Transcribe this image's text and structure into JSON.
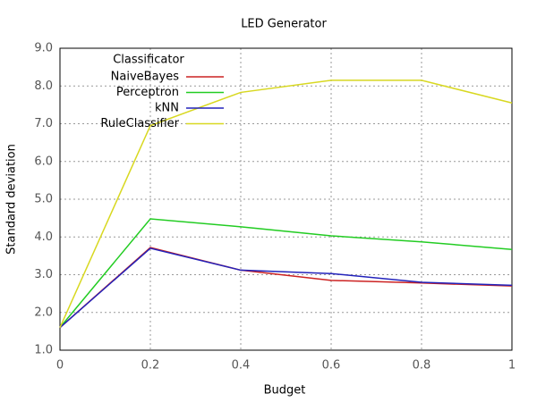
{
  "chart_data": {
    "type": "line",
    "title": "LED Generator",
    "x_label": "Budget",
    "y_label": "Standard deviation",
    "x": [
      0,
      0.2,
      0.4,
      0.6,
      0.8,
      1
    ],
    "xlim": [
      0,
      1
    ],
    "xticks": [
      0,
      0.2,
      0.4,
      0.6,
      0.8,
      1
    ],
    "ylim": [
      1,
      9
    ],
    "yticks": [
      {
        "value": 1,
        "label": "1.0"
      },
      {
        "value": 2,
        "label": "2.0"
      },
      {
        "value": 3,
        "label": "3.0"
      },
      {
        "value": 4,
        "label": "4.0"
      },
      {
        "value": 5,
        "label": "5.0"
      },
      {
        "value": 6,
        "label": "6.0"
      },
      {
        "value": 7,
        "label": "7.0"
      },
      {
        "value": 8,
        "label": "8.0"
      },
      {
        "value": 9,
        "label": "9.0"
      }
    ],
    "grid": true,
    "legend_title": "Classificator",
    "legend_position": "upper-left",
    "series": [
      {
        "name": "NaiveBayes",
        "color": "#cc2222",
        "values": [
          1.6,
          3.72,
          3.12,
          2.85,
          2.78,
          2.7
        ]
      },
      {
        "name": "Perceptron",
        "color": "#22cc22",
        "values": [
          1.6,
          4.48,
          4.27,
          4.03,
          3.87,
          3.67
        ]
      },
      {
        "name": "kNN",
        "color": "#2222bb",
        "values": [
          1.6,
          3.7,
          3.12,
          3.03,
          2.8,
          2.72
        ]
      },
      {
        "name": "RuleClassifier",
        "color": "#d8d820",
        "values": [
          1.6,
          6.95,
          7.83,
          8.15,
          8.15,
          7.55
        ]
      }
    ]
  }
}
